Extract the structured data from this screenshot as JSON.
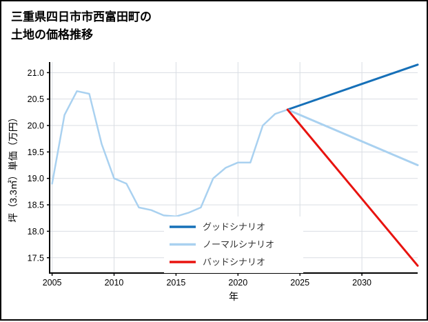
{
  "page": {
    "title_line1": "三重県四日市市西富田町の",
    "title_line2": "土地の価格推移"
  },
  "chart_data": {
    "type": "line",
    "title": "三重県四日市市西富田町の土地の価格推移",
    "xlabel": "年",
    "ylabel": "坪（3.3㎡）単価（万円）",
    "xlim": [
      2004.8,
      2034.5
    ],
    "ylim": [
      17.21,
      21.2
    ],
    "xticks": [
      2005,
      2010,
      2015,
      2020,
      2025,
      2030
    ],
    "xtick_labels": [
      "2005",
      "2010",
      "2015",
      "2020",
      "2025",
      "2030"
    ],
    "yticks": [
      17.5,
      18.0,
      18.5,
      19.0,
      19.5,
      20.0,
      20.5,
      21.0
    ],
    "ytick_labels": [
      "17.5",
      "18.0",
      "18.5",
      "19.0",
      "19.5",
      "20.0",
      "20.5",
      "21.0"
    ],
    "grid": true,
    "legend_position": "lower-center-inside",
    "colors": {
      "historical": "#a9d1f0",
      "good": "#1670b8",
      "normal": "#a9d1f0",
      "bad": "#e8130f",
      "gridline": "#d9dde3",
      "axis": "#000000"
    },
    "series": [
      {
        "name": "",
        "role": "historical",
        "color": "#a9d1f0",
        "width": 2.5,
        "in_legend": false,
        "x": [
          2005,
          2006,
          2007,
          2008,
          2009,
          2010,
          2011,
          2012,
          2013,
          2014,
          2015,
          2016,
          2017,
          2018,
          2019,
          2020,
          2021,
          2022,
          2023,
          2024
        ],
        "y": [
          18.9,
          20.2,
          20.65,
          20.6,
          19.65,
          19.0,
          18.9,
          18.45,
          18.4,
          18.3,
          18.28,
          18.35,
          18.45,
          19.0,
          19.2,
          19.3,
          19.3,
          20.0,
          20.22,
          20.3
        ]
      },
      {
        "name": "グッドシナリオ",
        "role": "good-scenario",
        "color": "#1670b8",
        "width": 3,
        "in_legend": true,
        "x": [
          2024,
          2034.5
        ],
        "y": [
          20.3,
          21.15
        ]
      },
      {
        "name": "ノーマルシナリオ",
        "role": "normal-scenario",
        "color": "#a9d1f0",
        "width": 3,
        "in_legend": true,
        "x": [
          2024,
          2034.5
        ],
        "y": [
          20.3,
          19.25
        ]
      },
      {
        "name": "バッドシナリオ",
        "role": "bad-scenario",
        "color": "#e8130f",
        "width": 3,
        "in_legend": true,
        "x": [
          2024,
          2034.5
        ],
        "y": [
          20.3,
          17.35
        ]
      }
    ]
  }
}
